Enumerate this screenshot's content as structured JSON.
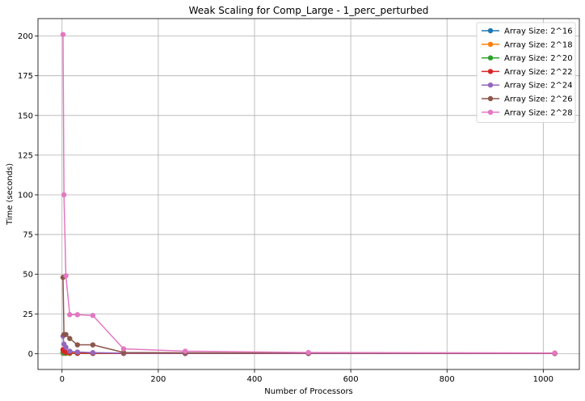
{
  "chart_data": {
    "type": "line",
    "title": "Weak Scaling for Comp_Large - 1_perc_perturbed",
    "xlabel": "Number of Processors",
    "ylabel": "Time (seconds)",
    "xlim": [
      -50,
      1075
    ],
    "ylim": [
      -10,
      211
    ],
    "xticks": [
      0,
      200,
      400,
      600,
      800,
      1000
    ],
    "yticks": [
      0,
      25,
      50,
      75,
      100,
      125,
      150,
      175,
      200
    ],
    "grid": true,
    "legend_position": "top-right",
    "series": [
      {
        "name": "Array Size: 2^16",
        "color": "#1f77b4",
        "x": [
          2,
          4,
          8,
          16,
          32,
          64,
          128,
          256,
          512,
          1024
        ],
        "y": [
          0.2,
          0.15,
          0.1,
          0.1,
          0.1,
          0.1,
          0.1,
          0.1,
          0.1,
          0.1
        ]
      },
      {
        "name": "Array Size: 2^18",
        "color": "#ff7f0e",
        "x": [
          2,
          4,
          8,
          16,
          32,
          64,
          128,
          256,
          512,
          1024
        ],
        "y": [
          0.5,
          0.3,
          0.2,
          0.15,
          0.1,
          0.1,
          0.1,
          0.1,
          0.1,
          0.1
        ]
      },
      {
        "name": "Array Size: 2^20",
        "color": "#2ca02c",
        "x": [
          2,
          4,
          8,
          16,
          32,
          64,
          128,
          256,
          512,
          1024
        ],
        "y": [
          1.0,
          0.6,
          0.4,
          0.3,
          0.2,
          0.15,
          0.1,
          0.1,
          0.1,
          0.1
        ]
      },
      {
        "name": "Array Size: 2^22",
        "color": "#d62728",
        "x": [
          2,
          4,
          8,
          16,
          32,
          64,
          128,
          256,
          512,
          1024
        ],
        "y": [
          2.5,
          1.5,
          0.8,
          0.5,
          0.3,
          0.2,
          0.15,
          0.1,
          0.1,
          0.1
        ]
      },
      {
        "name": "Array Size: 2^24",
        "color": "#9467bd",
        "x": [
          2,
          4,
          8,
          16,
          32,
          64,
          128,
          256,
          512,
          1024
        ],
        "y": [
          11,
          6,
          4,
          1.5,
          1.0,
          0.6,
          0.3,
          0.2,
          0.15,
          0.1
        ]
      },
      {
        "name": "Array Size: 2^26",
        "color": "#8c564b",
        "x": [
          2,
          4,
          8,
          16,
          32,
          64,
          128,
          256,
          512,
          1024
        ],
        "y": [
          48,
          12,
          12,
          9.5,
          5.5,
          5.5,
          0.7,
          0.5,
          0.3,
          0.2
        ]
      },
      {
        "name": "Array Size: 2^28",
        "color": "#e377c2",
        "x": [
          2,
          4,
          8,
          16,
          32,
          64,
          128,
          256,
          512,
          1024
        ],
        "y": [
          201,
          100,
          49,
          24.5,
          24.5,
          24,
          3,
          1.5,
          0.7,
          0.4
        ]
      }
    ]
  }
}
